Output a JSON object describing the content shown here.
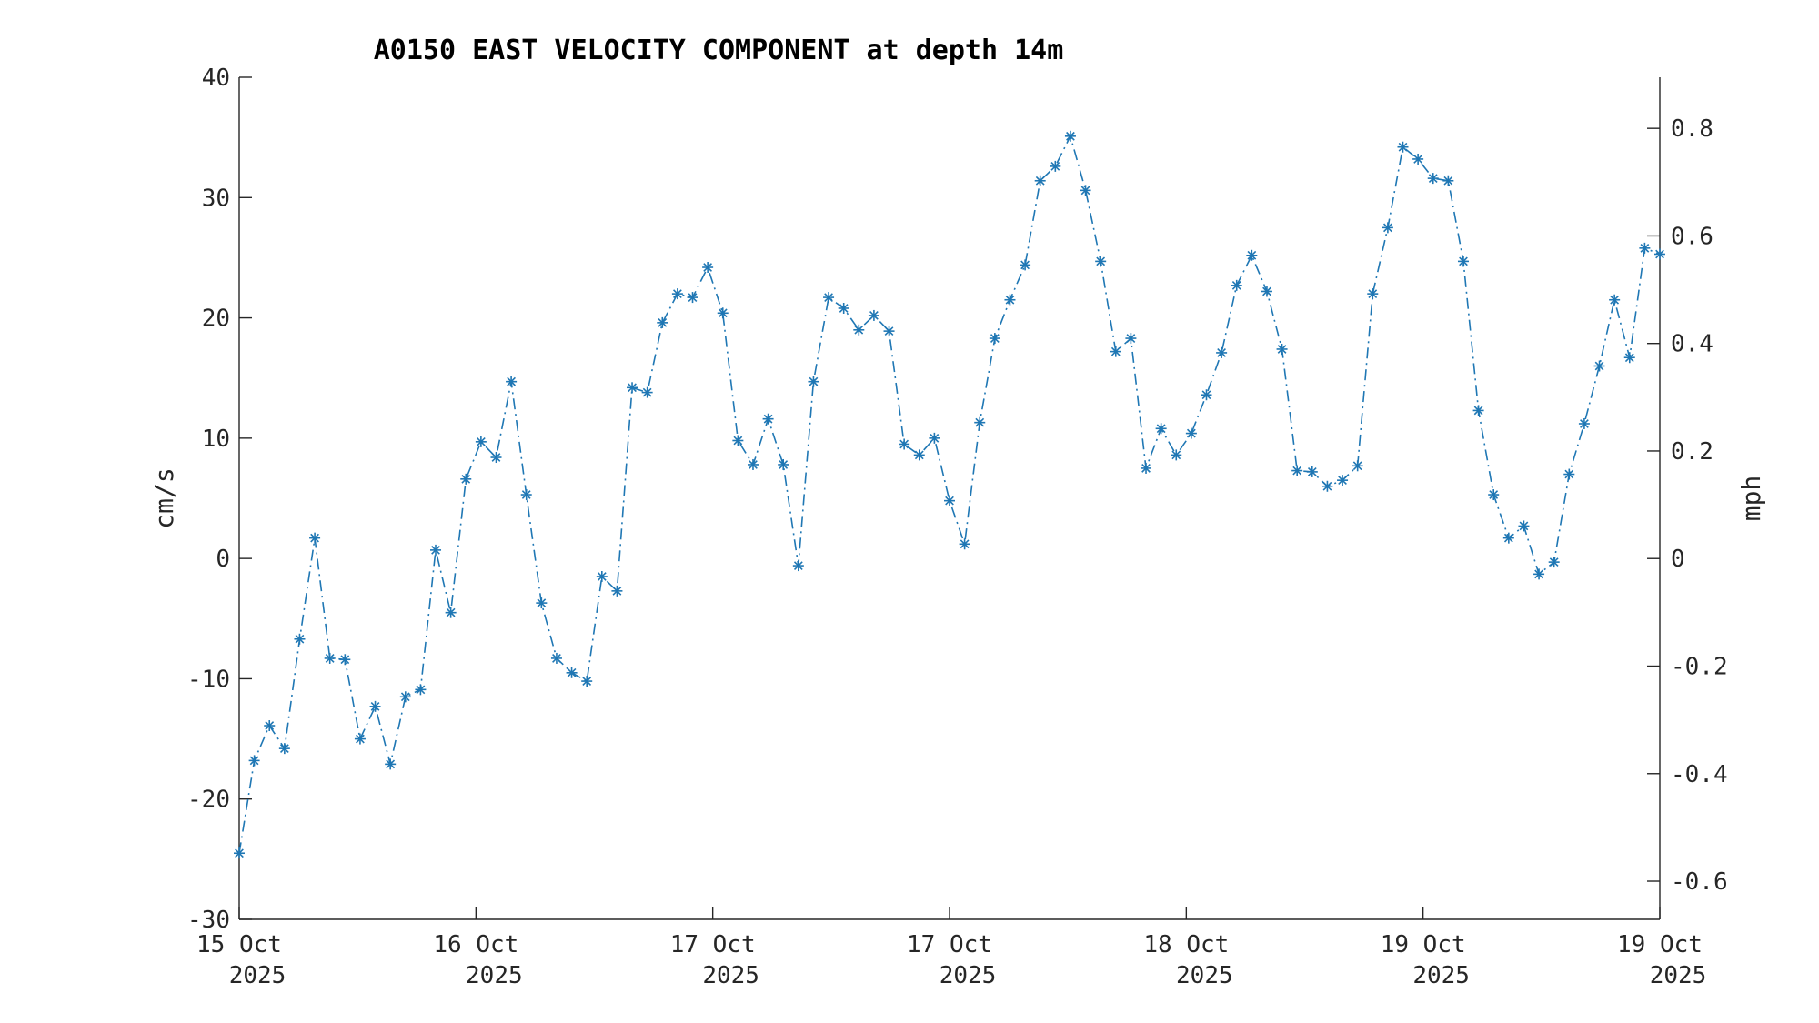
{
  "chart_data": {
    "type": "line",
    "title": "A0150 EAST VELOCITY COMPONENT at depth 14m",
    "ylabel_left": "cm/s",
    "ylabel_right": "mph",
    "xlabel": "",
    "grid": false,
    "legend": "none",
    "color": "#1f77b4",
    "line_style": "dash-dot",
    "marker": "asterisk",
    "ylim": [
      -30,
      40
    ],
    "y_ticks": [
      -30,
      -20,
      -10,
      0,
      10,
      20,
      30,
      40
    ],
    "y_tick_labels": [
      "-30",
      "-20",
      "-10",
      "0",
      "10",
      "20",
      "30",
      "40"
    ],
    "ylim_right": [
      -0.671,
      0.895
    ],
    "y_ticks_right": [
      -0.6,
      -0.4,
      -0.2,
      0,
      0.2,
      0.4,
      0.6,
      0.8
    ],
    "y_tick_labels_right": [
      "-0.6",
      "-0.4",
      "-0.2",
      "0",
      "0.2",
      "0.4",
      "0.6",
      "0.8"
    ],
    "x_tick_labels": [
      [
        "15 Oct",
        "2025"
      ],
      [
        "16 Oct",
        "2025"
      ],
      [
        "17 Oct",
        "2025"
      ],
      [
        "17 Oct",
        "2025"
      ],
      [
        "18 Oct",
        "2025"
      ],
      [
        "19 Oct",
        "2025"
      ],
      [
        "19 Oct",
        "2025"
      ]
    ],
    "series": [
      {
        "values": [
          -24.5,
          -16.8,
          -13.9,
          -15.8,
          -6.7,
          1.7,
          -8.3,
          -8.4,
          -15.0,
          -12.3,
          -17.1,
          -11.5,
          -10.9,
          0.7,
          -4.5,
          6.6,
          9.7,
          8.4,
          14.7,
          5.3,
          -3.7,
          -8.3,
          -9.5,
          -10.2,
          -1.5,
          -2.7,
          14.2,
          13.8,
          19.6,
          22.0,
          21.7,
          24.2,
          20.4,
          9.8,
          7.8,
          11.6,
          7.8,
          -0.6,
          14.7,
          21.7,
          20.8,
          19.0,
          20.2,
          18.9,
          9.5,
          8.6,
          10.0,
          4.8,
          1.2,
          11.3,
          18.3,
          21.5,
          24.4,
          31.4,
          32.6,
          35.1,
          30.6,
          24.7,
          17.2,
          18.3,
          7.5,
          10.8,
          8.6,
          10.4,
          13.6,
          17.1,
          22.7,
          25.2,
          22.2,
          17.4,
          7.3,
          7.2,
          6.0,
          6.5,
          7.7,
          22.0,
          27.5,
          34.2,
          33.2,
          31.6,
          31.4,
          24.7,
          12.3,
          5.3,
          1.7,
          2.7,
          -1.3,
          -0.3,
          7.0,
          11.2,
          16.0,
          21.5,
          16.7,
          25.8,
          25.3
        ]
      }
    ]
  }
}
